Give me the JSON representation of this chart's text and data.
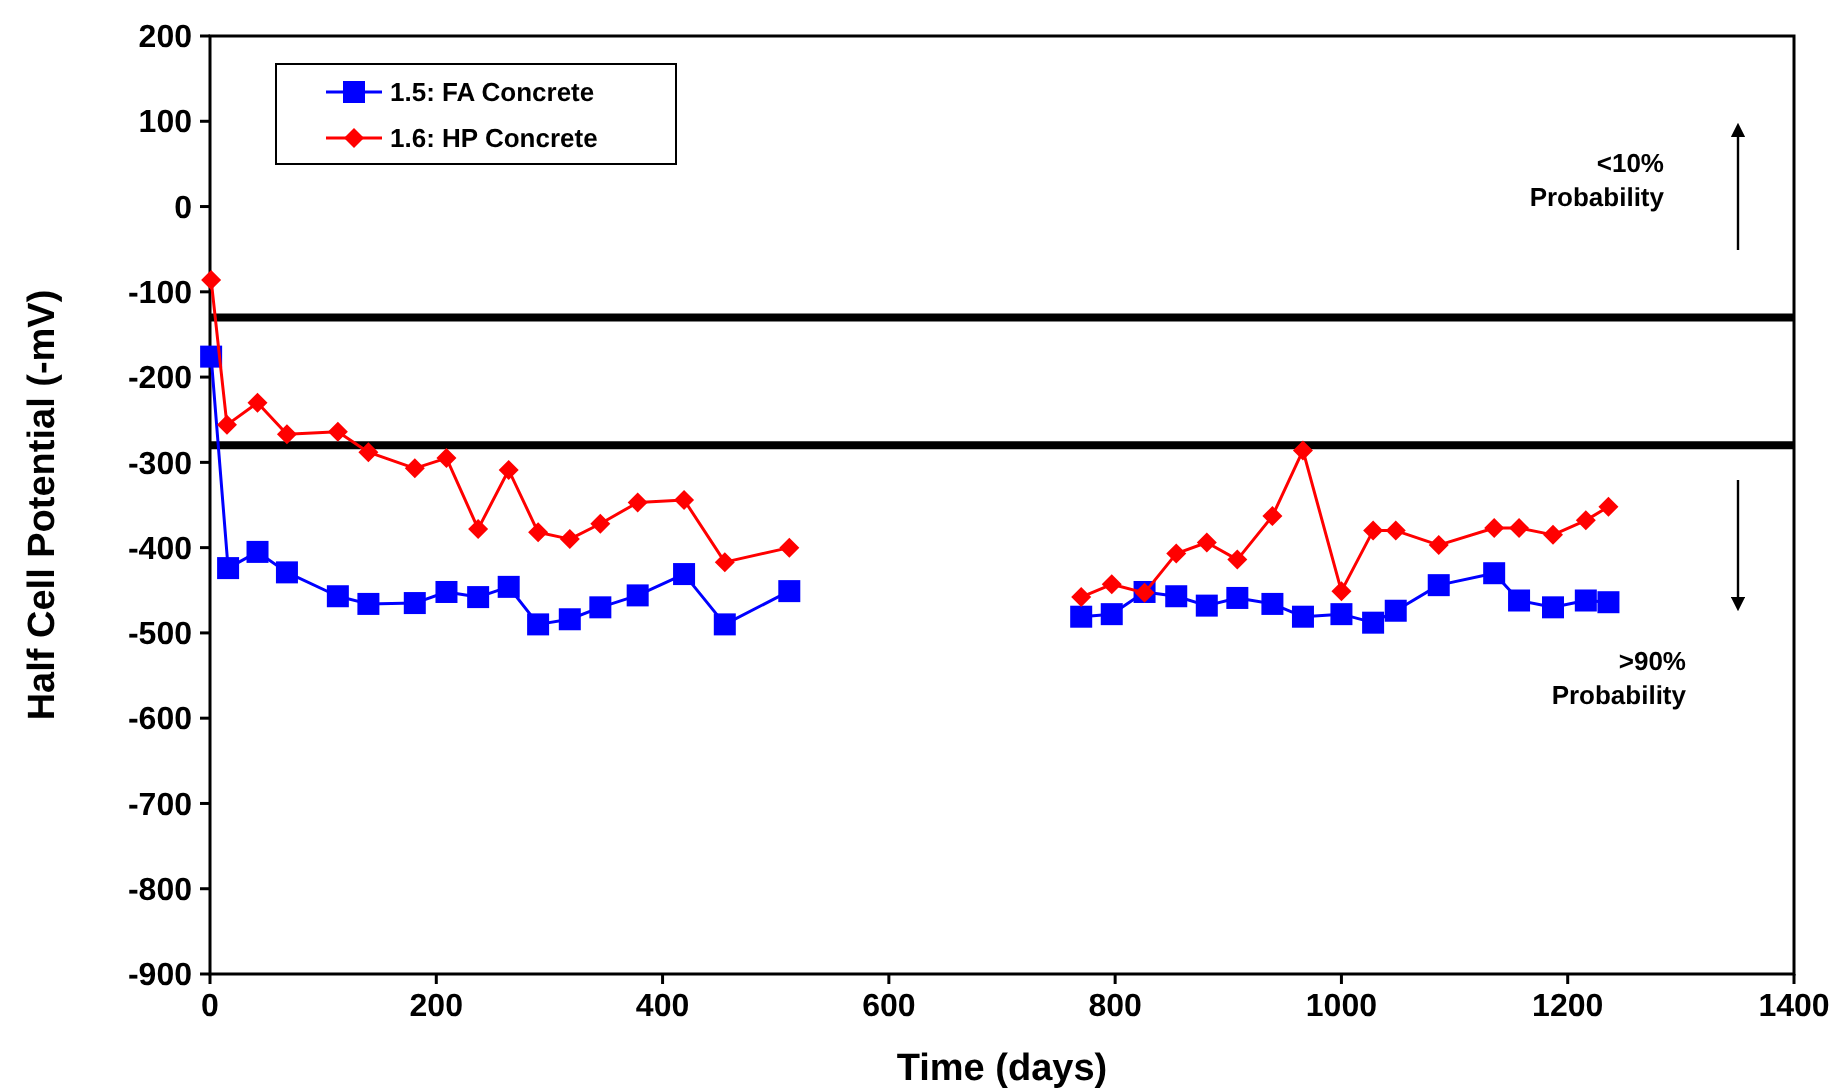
{
  "chart_data": {
    "type": "line",
    "xlabel": "Time (days)",
    "ylabel": "Half Cell Potential (-mV)",
    "xlim": [
      0,
      1400
    ],
    "xticks": [
      0,
      200,
      400,
      600,
      800,
      1000,
      1200,
      1400
    ],
    "ylim": [
      -900,
      200
    ],
    "yticks": [
      -900,
      -800,
      -700,
      -600,
      -500,
      -400,
      -300,
      -200,
      -100,
      0,
      100,
      200
    ],
    "grid": false,
    "legend": "top left",
    "series": [
      {
        "name": "1.5: FA Concrete",
        "color": "#0000ff",
        "marker": "square",
        "x": [
          1,
          16,
          42,
          68,
          113,
          140,
          181,
          209,
          237,
          264,
          290,
          318,
          345,
          378,
          419,
          455,
          512,
          640,
          770,
          797,
          826,
          854,
          881,
          908,
          939,
          966,
          1000,
          1028,
          1048,
          1086,
          1135,
          1157,
          1187,
          1216,
          1236
        ],
        "values": [
          -176,
          -424,
          -405,
          -429,
          -457,
          -466,
          -465,
          -452,
          -458,
          -446,
          -490,
          -484,
          -470,
          -456,
          -431,
          -490,
          -451,
          null,
          -481,
          -478,
          -452,
          -457,
          -468,
          -459,
          -466,
          -481,
          -478,
          -488,
          -474,
          -444,
          -430,
          -462,
          -470,
          -462,
          -464
        ]
      },
      {
        "name": "1.6: HP Concrete",
        "color": "#ff0000",
        "marker": "diamond",
        "x": [
          1,
          15,
          42,
          68,
          113,
          140,
          181,
          209,
          237,
          264,
          290,
          318,
          345,
          378,
          419,
          455,
          512,
          640,
          770,
          797,
          826,
          854,
          881,
          908,
          939,
          966,
          1000,
          1028,
          1048,
          1086,
          1135,
          1157,
          1187,
          1216,
          1236
        ],
        "values": [
          -86,
          -256,
          -230,
          -267,
          -264,
          -288,
          -307,
          -295,
          -378,
          -309,
          -382,
          -390,
          -372,
          -347,
          -344,
          -417,
          -400,
          null,
          -458,
          -443,
          -453,
          -407,
          -394,
          -414,
          -363,
          -286,
          -451,
          -380,
          -380,
          -397,
          -377,
          -377,
          -385,
          -368,
          -352
        ]
      }
    ],
    "ref_lines": [
      {
        "axis": "y",
        "value": -130,
        "color": "#000000"
      },
      {
        "axis": "y",
        "value": -280,
        "color": "#000000"
      }
    ],
    "annotations": [
      "<10%\nProbability",
      ">90%\nProbability"
    ]
  }
}
